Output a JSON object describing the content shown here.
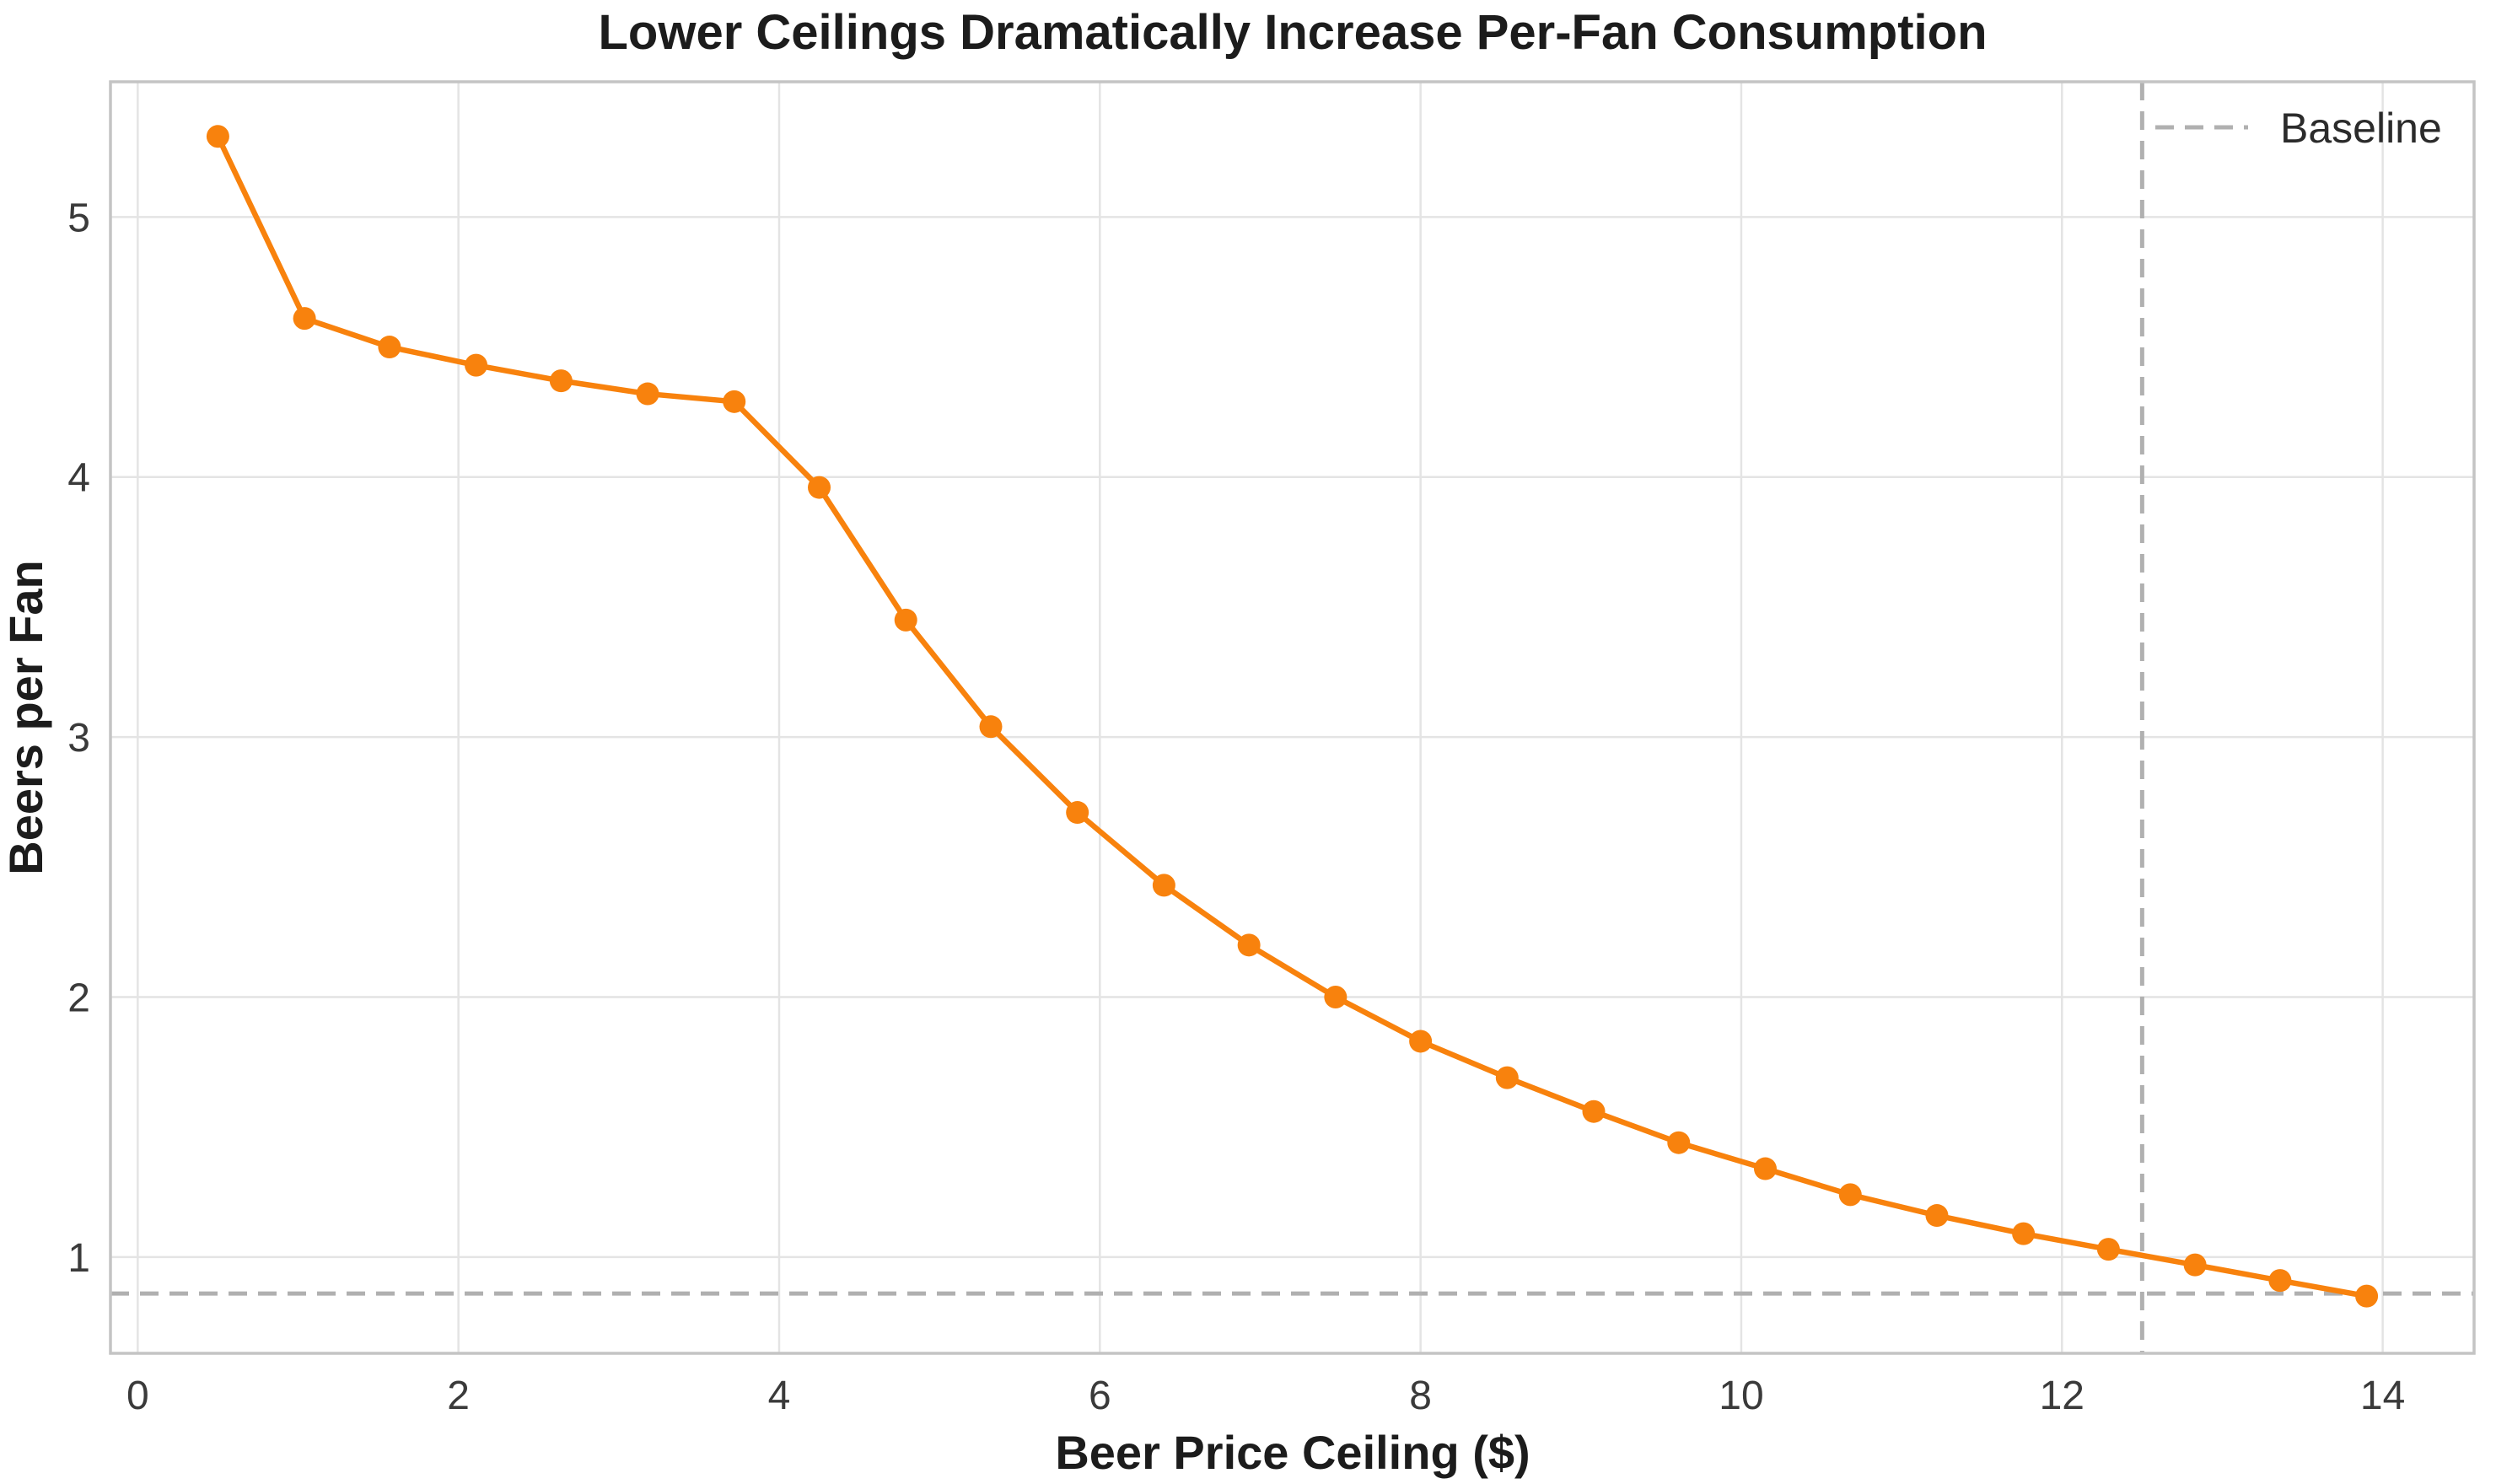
{
  "chart_data": {
    "type": "line",
    "title": "Lower Ceilings Dramatically Increase Per-Fan Consumption",
    "xlabel": "Beer Price Ceiling ($)",
    "ylabel": "Beers per Fan",
    "x_ticks": [
      0,
      2,
      4,
      6,
      8,
      10,
      12,
      14
    ],
    "y_ticks": [
      1,
      2,
      3,
      4,
      5
    ],
    "xlim": [
      -0.17,
      14.57
    ],
    "ylim": [
      0.63,
      5.52
    ],
    "grid": true,
    "legend_position": "upper right",
    "series": [
      {
        "name": "Beers per Fan",
        "color": "#f8820d",
        "marker": "circle",
        "x": [
          0.5,
          1.04,
          1.57,
          2.11,
          2.64,
          3.18,
          3.72,
          4.25,
          4.79,
          5.32,
          5.86,
          6.4,
          6.93,
          7.47,
          8.0,
          8.54,
          9.08,
          9.61,
          10.15,
          10.68,
          11.22,
          11.76,
          12.29,
          12.83,
          13.36,
          13.9
        ],
        "y": [
          5.31,
          4.61,
          4.5,
          4.43,
          4.37,
          4.32,
          4.29,
          3.96,
          3.45,
          3.04,
          2.71,
          2.43,
          2.2,
          2.0,
          1.83,
          1.69,
          1.56,
          1.44,
          1.34,
          1.24,
          1.16,
          1.09,
          1.03,
          0.97,
          0.91,
          0.85
        ]
      }
    ],
    "baseline": {
      "label": "Baseline",
      "color": "#b0b0b0",
      "style": "dashed",
      "x": 12.5,
      "y": 0.86
    },
    "colors": {
      "grid": "#e4e4e4",
      "frame": "#c4c4c4",
      "accent": "#f8820d",
      "reference": "#b0b0b0"
    }
  }
}
